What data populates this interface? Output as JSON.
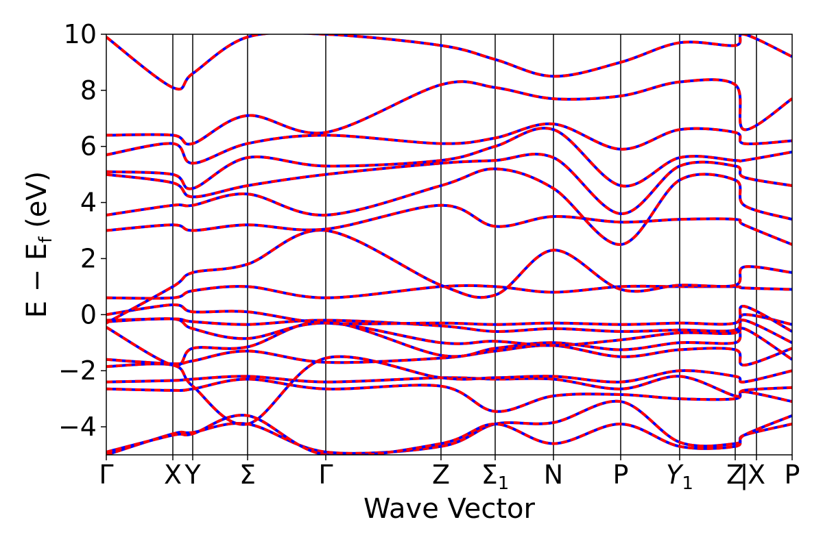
{
  "chart_data": {
    "type": "line",
    "title": "",
    "xlabel": "Wave Vector",
    "ylabel": "E − E_f (eV)",
    "ylabel_parts": {
      "lead": "E − E",
      "sub": "f",
      "tail": " (eV)"
    },
    "ylim": [
      -5,
      10
    ],
    "yticks": [
      -4,
      -2,
      0,
      2,
      4,
      6,
      8,
      10
    ],
    "ytick_labels": [
      "−4",
      "−2",
      "0",
      "2",
      "4",
      "6",
      "8",
      "10"
    ],
    "xlim": [
      0,
      10
    ],
    "kpoints": [
      {
        "label": "Γ",
        "x": 0.0
      },
      {
        "label": "X",
        "x": 0.97
      },
      {
        "label": "Y",
        "x": 1.26
      },
      {
        "label": "Σ",
        "x": 2.06
      },
      {
        "label": "Γ",
        "x": 3.2
      },
      {
        "label": "Z",
        "x": 4.88
      },
      {
        "label": "Σ1",
        "x": 5.67,
        "main": "Σ",
        "sub": "1"
      },
      {
        "label": "N",
        "x": 6.52
      },
      {
        "label": "P",
        "x": 7.5
      },
      {
        "label": "Y1",
        "x": 8.36,
        "main": "Y",
        "sub": "1",
        "italic": true
      },
      {
        "label": "Z",
        "x": 9.17
      },
      {
        "label": "|",
        "x": 9.3
      },
      {
        "label": "X",
        "x": 9.48
      },
      {
        "label": "P",
        "x": 10.0
      }
    ],
    "grid": false,
    "legend": "none",
    "styles": {
      "band_color_1": "#ff0000",
      "band_color_2": "#0000ff",
      "vline_color": "#000000"
    },
    "series": [
      {
        "x": [
          0,
          0.97,
          1.26,
          2.06,
          3.2,
          4.88,
          5.67,
          6.52,
          7.5,
          8.36,
          9.17,
          9.3,
          10
        ],
        "values": [
          -5.0,
          -4.25,
          -4.2,
          -3.9,
          -4.9,
          -4.7,
          -3.9,
          -3.85,
          -3.1,
          -4.55,
          -4.6,
          -4.3,
          -3.9
        ]
      },
      {
        "x": [
          0,
          0.97,
          1.26,
          2.06,
          3.2,
          4.88,
          5.67,
          6.52,
          7.5,
          8.36,
          9.17,
          9.3,
          10
        ],
        "values": [
          -4.9,
          -4.3,
          -4.25,
          -3.6,
          -5.0,
          -4.6,
          -3.9,
          -4.6,
          -3.9,
          -4.7,
          -4.7,
          -4.3,
          -3.6
        ]
      },
      {
        "x": [
          0,
          0.97,
          1.26,
          2.06,
          3.2,
          4.88,
          5.67,
          6.52,
          7.5,
          8.36,
          9.17,
          9.3,
          10
        ],
        "values": [
          -2.65,
          -2.7,
          -2.65,
          -2.3,
          -2.65,
          -2.55,
          -3.45,
          -2.9,
          -2.85,
          -3.0,
          -3.0,
          -2.75,
          -3.1
        ]
      },
      {
        "x": [
          0,
          0.97,
          1.26,
          2.06,
          3.2,
          4.88,
          5.67,
          6.52,
          7.5,
          8.36,
          9.17,
          9.3,
          10
        ],
        "values": [
          -2.4,
          -2.35,
          -2.3,
          -2.2,
          -2.4,
          -2.25,
          -2.3,
          -2.3,
          -2.65,
          -2.2,
          -2.9,
          -2.7,
          -2.6
        ]
      },
      {
        "x": [
          0,
          0.97,
          1.26,
          2.06,
          3.2,
          4.88,
          5.67,
          6.52,
          7.5,
          8.36,
          9.17,
          9.3,
          10
        ],
        "values": [
          -1.85,
          -1.8,
          -2.55,
          -3.9,
          -1.55,
          -2.25,
          -2.25,
          -2.2,
          -2.4,
          -2.0,
          -2.2,
          -2.4,
          -2.0
        ]
      },
      {
        "x": [
          0,
          0.97,
          1.26,
          2.06,
          3.2,
          4.88,
          5.67,
          6.52,
          7.5,
          8.36,
          9.17,
          9.3,
          10
        ],
        "values": [
          -1.6,
          -1.75,
          -1.65,
          -1.3,
          -1.7,
          -1.55,
          -1.3,
          -1.1,
          -1.5,
          -1.25,
          -1.25,
          -1.8,
          -1.2
        ]
      },
      {
        "x": [
          0,
          0.97,
          1.26,
          2.06,
          3.2,
          4.88,
          5.67,
          6.52,
          7.5,
          8.36,
          9.17,
          9.3,
          10
        ],
        "values": [
          -0.45,
          -1.8,
          -1.2,
          -1.15,
          -0.25,
          -1.45,
          -1.2,
          -1.0,
          -1.25,
          -1.0,
          -1.0,
          -0.5,
          -1.6
        ]
      },
      {
        "x": [
          0,
          0.97,
          1.26,
          2.06,
          3.2,
          4.88,
          5.67,
          6.52,
          7.5,
          8.36,
          9.17,
          9.3,
          10
        ],
        "values": [
          -0.25,
          -0.15,
          -0.5,
          -0.85,
          -0.3,
          -1.0,
          -0.95,
          -1.1,
          -0.9,
          -0.65,
          -0.65,
          -0.2,
          -1.0
        ]
      },
      {
        "x": [
          0,
          0.97,
          1.26,
          2.06,
          3.2,
          4.88,
          5.67,
          6.52,
          7.5,
          8.36,
          9.17,
          9.3,
          10
        ],
        "values": [
          -0.2,
          -0.15,
          -0.25,
          -0.35,
          -0.2,
          -0.4,
          -0.6,
          -0.5,
          -0.6,
          -0.55,
          -0.55,
          0.0,
          -0.35
        ]
      },
      {
        "x": [
          0,
          0.97,
          1.26,
          2.06,
          3.2,
          4.88,
          5.67,
          6.52,
          7.5,
          8.36,
          9.17,
          9.3,
          10
        ],
        "values": [
          0.0,
          0.35,
          0.1,
          0.1,
          -0.3,
          -0.3,
          -0.35,
          -0.3,
          -0.35,
          -0.3,
          -0.3,
          0.3,
          -0.6
        ]
      },
      {
        "x": [
          0,
          0.97,
          1.26,
          2.06,
          3.2,
          4.88,
          5.67,
          6.52,
          7.5,
          8.36,
          9.17,
          9.3,
          10
        ],
        "values": [
          0.6,
          0.6,
          0.85,
          1.0,
          0.6,
          1.0,
          1.0,
          0.8,
          1.0,
          1.0,
          1.0,
          0.95,
          0.9
        ]
      },
      {
        "x": [
          0,
          0.97,
          1.26,
          2.06,
          3.2,
          4.88,
          5.67,
          6.52,
          7.5,
          8.36,
          9.17,
          9.3,
          10
        ],
        "values": [
          -0.3,
          1.0,
          1.5,
          1.8,
          3.0,
          1.05,
          0.7,
          2.3,
          0.9,
          1.05,
          1.05,
          1.7,
          1.5
        ]
      },
      {
        "x": [
          0,
          0.97,
          1.26,
          2.06,
          3.2,
          4.88,
          5.67,
          6.52,
          7.5,
          8.36,
          9.17,
          9.3,
          10
        ],
        "values": [
          3.0,
          3.2,
          3.0,
          3.2,
          3.05,
          3.9,
          3.15,
          3.5,
          3.3,
          3.4,
          3.4,
          3.2,
          2.5
        ]
      },
      {
        "x": [
          0,
          0.97,
          1.26,
          2.06,
          3.2,
          4.88,
          5.67,
          6.52,
          7.5,
          8.36,
          9.17,
          9.3,
          10
        ],
        "values": [
          3.55,
          3.9,
          3.9,
          4.3,
          3.55,
          4.6,
          5.2,
          4.5,
          2.5,
          4.8,
          4.8,
          3.9,
          3.4
        ]
      },
      {
        "x": [
          0,
          0.97,
          1.26,
          2.06,
          3.2,
          4.88,
          5.67,
          6.52,
          7.5,
          8.36,
          9.17,
          9.3,
          10
        ],
        "values": [
          5.0,
          4.7,
          4.2,
          4.6,
          5.0,
          5.4,
          5.5,
          5.6,
          3.6,
          5.3,
          5.3,
          4.9,
          4.6
        ]
      },
      {
        "x": [
          0,
          0.97,
          1.26,
          2.06,
          3.2,
          4.88,
          5.67,
          6.52,
          7.5,
          8.36,
          9.17,
          9.3,
          10
        ],
        "values": [
          5.1,
          5.0,
          4.5,
          5.6,
          5.3,
          5.5,
          6.0,
          6.6,
          4.6,
          5.6,
          5.5,
          5.5,
          5.8
        ]
      },
      {
        "x": [
          0,
          0.97,
          1.26,
          2.06,
          3.2,
          4.88,
          5.67,
          6.52,
          7.5,
          8.36,
          9.17,
          9.3,
          10
        ],
        "values": [
          5.7,
          6.1,
          5.4,
          6.1,
          6.4,
          6.1,
          6.3,
          6.8,
          5.9,
          6.6,
          6.5,
          6.1,
          6.2
        ]
      },
      {
        "x": [
          0,
          0.97,
          1.26,
          2.06,
          3.2,
          4.88,
          5.67,
          6.52,
          7.5,
          8.36,
          9.17,
          9.3,
          10
        ],
        "values": [
          6.4,
          6.4,
          6.1,
          7.1,
          6.5,
          8.2,
          8.1,
          7.7,
          7.8,
          8.3,
          8.2,
          6.6,
          7.7
        ]
      },
      {
        "x": [
          0,
          0.97,
          1.26,
          2.06,
          3.2,
          4.88,
          5.67,
          6.52,
          7.5,
          8.36,
          9.17,
          9.3,
          10
        ],
        "values": [
          9.9,
          8.1,
          8.6,
          9.9,
          10.0,
          9.6,
          9.1,
          8.5,
          9.0,
          9.7,
          9.6,
          10.0,
          9.2
        ]
      }
    ]
  }
}
